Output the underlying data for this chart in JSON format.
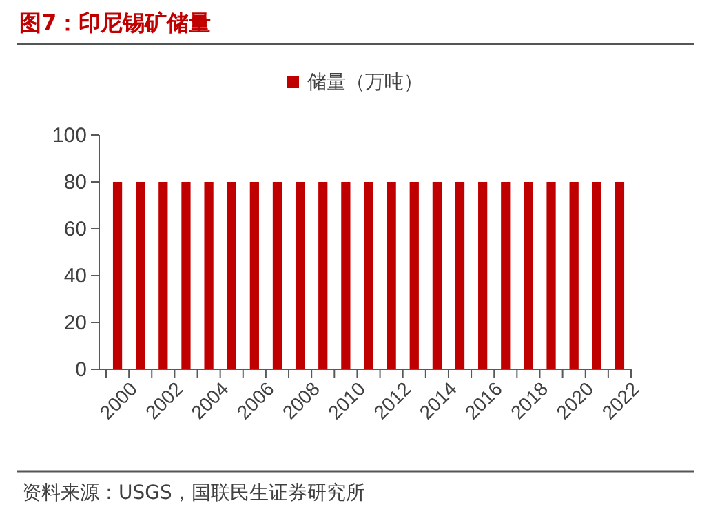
{
  "chart_data": {
    "type": "bar",
    "title": "图7：印尼锡矿储量",
    "categories": [
      "2000",
      null,
      "2002",
      null,
      "2004",
      null,
      "2006",
      null,
      "2008",
      null,
      "2010",
      null,
      "2012",
      null,
      "2014",
      null,
      "2016",
      null,
      "2018",
      null,
      "2020",
      null,
      "2022"
    ],
    "series": [
      {
        "name": "储量（万吨）",
        "color": "#c00000",
        "values": [
          80,
          80,
          80,
          80,
          80,
          80,
          80,
          80,
          80,
          80,
          80,
          80,
          80,
          80,
          80,
          80,
          80,
          80,
          80,
          80,
          80,
          80,
          80
        ]
      }
    ],
    "ylim": [
      0,
      100
    ],
    "yticks": [
      0,
      20,
      40,
      60,
      80,
      100
    ],
    "legend": "top",
    "grid": false,
    "annotations": [
      "资料来源：USGS，国联民生证券研究所"
    ]
  }
}
